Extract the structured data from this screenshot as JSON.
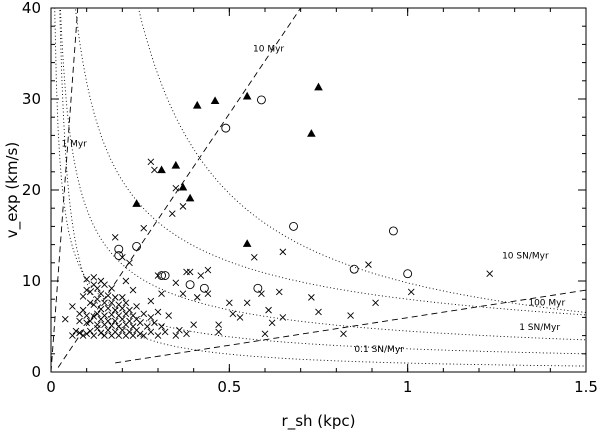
{
  "chart_data": {
    "type": "scatter",
    "title": "",
    "xlabel": "r_sh (kpc)",
    "ylabel": "v_exp (km/s)",
    "xlim": [
      0,
      1.5
    ],
    "ylim": [
      0,
      40
    ],
    "x_ticks": [
      {
        "value": 0,
        "label": "0"
      },
      {
        "value": 0.5,
        "label": "0.5"
      },
      {
        "value": 1,
        "label": "1"
      },
      {
        "value": 1.5,
        "label": "1.5"
      }
    ],
    "y_ticks": [
      {
        "value": 0,
        "label": "0"
      },
      {
        "value": 10,
        "label": "10"
      },
      {
        "value": 20,
        "label": "20"
      },
      {
        "value": 30,
        "label": "30"
      },
      {
        "value": 40,
        "label": "40"
      }
    ],
    "grid": false,
    "legend": null,
    "series": [
      {
        "marker": "filled-triangle",
        "points": [
          [
            0.24,
            18.5
          ],
          [
            0.31,
            22.2
          ],
          [
            0.35,
            22.7
          ],
          [
            0.37,
            20.3
          ],
          [
            0.39,
            19.1
          ],
          [
            0.41,
            29.3
          ],
          [
            0.46,
            29.8
          ],
          [
            0.55,
            30.3
          ],
          [
            0.55,
            14.1
          ],
          [
            0.73,
            26.2
          ],
          [
            0.75,
            31.3
          ]
        ]
      },
      {
        "marker": "open-circle",
        "points": [
          [
            0.19,
            13.5
          ],
          [
            0.19,
            12.8
          ],
          [
            0.24,
            13.8
          ],
          [
            0.31,
            10.6
          ],
          [
            0.32,
            10.6
          ],
          [
            0.39,
            9.6
          ],
          [
            0.43,
            9.2
          ],
          [
            0.49,
            26.8
          ],
          [
            0.59,
            29.9
          ],
          [
            0.58,
            9.2
          ],
          [
            0.68,
            16.0
          ],
          [
            0.85,
            11.3
          ],
          [
            0.96,
            15.5
          ],
          [
            1.0,
            10.8
          ]
        ]
      },
      {
        "marker": "cross",
        "points": [
          [
            0.04,
            5.8
          ],
          [
            0.06,
            4.0
          ],
          [
            0.06,
            7.2
          ],
          [
            0.07,
            4.5
          ],
          [
            0.08,
            4.3
          ],
          [
            0.08,
            5.6
          ],
          [
            0.08,
            6.4
          ],
          [
            0.09,
            4.0
          ],
          [
            0.09,
            6.8
          ],
          [
            0.09,
            8.3
          ],
          [
            0.1,
            4.2
          ],
          [
            0.1,
            5.4
          ],
          [
            0.1,
            6.2
          ],
          [
            0.1,
            9.0
          ],
          [
            0.1,
            10.2
          ],
          [
            0.11,
            4.5
          ],
          [
            0.11,
            5.6
          ],
          [
            0.11,
            7.6
          ],
          [
            0.11,
            8.8
          ],
          [
            0.12,
            4.0
          ],
          [
            0.12,
            6.1
          ],
          [
            0.12,
            7.4
          ],
          [
            0.12,
            9.6
          ],
          [
            0.12,
            10.4
          ],
          [
            0.13,
            4.8
          ],
          [
            0.13,
            5.2
          ],
          [
            0.13,
            6.4
          ],
          [
            0.13,
            8.0
          ],
          [
            0.13,
            9.2
          ],
          [
            0.14,
            4.3
          ],
          [
            0.14,
            5.8
          ],
          [
            0.14,
            6.9
          ],
          [
            0.14,
            8.6
          ],
          [
            0.14,
            10.0
          ],
          [
            0.15,
            4.0
          ],
          [
            0.15,
            5.2
          ],
          [
            0.15,
            6.2
          ],
          [
            0.15,
            7.6
          ],
          [
            0.15,
            9.6
          ],
          [
            0.16,
            4.6
          ],
          [
            0.16,
            5.6
          ],
          [
            0.16,
            7.0
          ],
          [
            0.16,
            8.4
          ],
          [
            0.17,
            4.0
          ],
          [
            0.17,
            5.1
          ],
          [
            0.17,
            6.3
          ],
          [
            0.17,
            7.6
          ],
          [
            0.17,
            9.2
          ],
          [
            0.18,
            4.4
          ],
          [
            0.18,
            5.6
          ],
          [
            0.18,
            6.8
          ],
          [
            0.18,
            8.2
          ],
          [
            0.18,
            14.8
          ],
          [
            0.19,
            4.0
          ],
          [
            0.19,
            5.0
          ],
          [
            0.19,
            6.2
          ],
          [
            0.19,
            7.4
          ],
          [
            0.2,
            4.6
          ],
          [
            0.2,
            5.8
          ],
          [
            0.2,
            7.0
          ],
          [
            0.2,
            8.2
          ],
          [
            0.2,
            12.6
          ],
          [
            0.21,
            4.0
          ],
          [
            0.21,
            5.2
          ],
          [
            0.21,
            6.4
          ],
          [
            0.21,
            7.6
          ],
          [
            0.21,
            10.0
          ],
          [
            0.22,
            4.4
          ],
          [
            0.22,
            5.6
          ],
          [
            0.22,
            6.8
          ],
          [
            0.22,
            12.0
          ],
          [
            0.23,
            4.0
          ],
          [
            0.23,
            5.0
          ],
          [
            0.23,
            6.2
          ],
          [
            0.23,
            9.0
          ],
          [
            0.24,
            4.6
          ],
          [
            0.24,
            5.8
          ],
          [
            0.24,
            7.2
          ],
          [
            0.25,
            4.2
          ],
          [
            0.25,
            5.4
          ],
          [
            0.26,
            4.0
          ],
          [
            0.26,
            6.4
          ],
          [
            0.26,
            15.8
          ],
          [
            0.27,
            5.0
          ],
          [
            0.28,
            4.4
          ],
          [
            0.28,
            6.0
          ],
          [
            0.28,
            7.8
          ],
          [
            0.28,
            23.1
          ],
          [
            0.29,
            22.2
          ],
          [
            0.29,
            5.4
          ],
          [
            0.3,
            4.0
          ],
          [
            0.3,
            6.6
          ],
          [
            0.3,
            10.6
          ],
          [
            0.31,
            5.0
          ],
          [
            0.31,
            8.6
          ],
          [
            0.32,
            4.4
          ],
          [
            0.33,
            6.2
          ],
          [
            0.34,
            17.4
          ],
          [
            0.35,
            4.0
          ],
          [
            0.35,
            9.8
          ],
          [
            0.35,
            20.2
          ],
          [
            0.36,
            4.6
          ],
          [
            0.37,
            18.2
          ],
          [
            0.37,
            8.6
          ],
          [
            0.38,
            4.2
          ],
          [
            0.39,
            11.0
          ],
          [
            0.4,
            5.2
          ],
          [
            0.41,
            8.2
          ],
          [
            0.42,
            10.6
          ],
          [
            0.44,
            8.6
          ],
          [
            0.44,
            11.2
          ],
          [
            0.47,
            4.4
          ],
          [
            0.47,
            5.2
          ],
          [
            0.5,
            7.6
          ],
          [
            0.51,
            6.4
          ],
          [
            0.53,
            6.0
          ],
          [
            0.55,
            7.6
          ],
          [
            0.57,
            12.6
          ],
          [
            0.59,
            8.6
          ],
          [
            0.6,
            4.2
          ],
          [
            0.61,
            6.8
          ],
          [
            0.62,
            5.4
          ],
          [
            0.64,
            8.8
          ],
          [
            0.65,
            13.2
          ],
          [
            0.65,
            6.0
          ],
          [
            0.73,
            8.2
          ],
          [
            0.75,
            6.6
          ],
          [
            0.82,
            4.2
          ],
          [
            0.84,
            6.2
          ],
          [
            0.89,
            11.8
          ],
          [
            0.91,
            7.6
          ],
          [
            1.01,
            8.8
          ],
          [
            1.23,
            10.8
          ],
          [
            0.38,
            11.0
          ]
        ]
      }
    ],
    "curves": [
      {
        "style": "dotted",
        "label": "1 Myr",
        "A": 0.98
      },
      {
        "style": "dotted",
        "label": "10 Myr",
        "A": 9.8
      },
      {
        "style": "dashed",
        "label": "100 Myr",
        "A": 98
      },
      {
        "style": "dotted",
        "label": "0.1 SN/Myr",
        "A": 2.55,
        "p": 0.6
      },
      {
        "style": "dotted",
        "label": "1 SN/Myr",
        "A": 4.5,
        "p": 0.6
      },
      {
        "style": "dotted",
        "label": "10 SN/Myr",
        "A": 8.0,
        "p": 0.6
      }
    ],
    "annotations": [
      {
        "text": "10 Myr",
        "x": 0.61,
        "y": 35.2
      },
      {
        "text": "1 Myr",
        "x": 0.065,
        "y": 24.8
      },
      {
        "text": "10 SN/Myr",
        "x": 1.33,
        "y": 12.5
      },
      {
        "text": "100 Myr",
        "x": 1.39,
        "y": 7.3
      },
      {
        "text": "1 SN/Myr",
        "x": 1.37,
        "y": 4.6
      },
      {
        "text": "0.1 SN/Myr",
        "x": 0.92,
        "y": 2.2
      }
    ]
  }
}
